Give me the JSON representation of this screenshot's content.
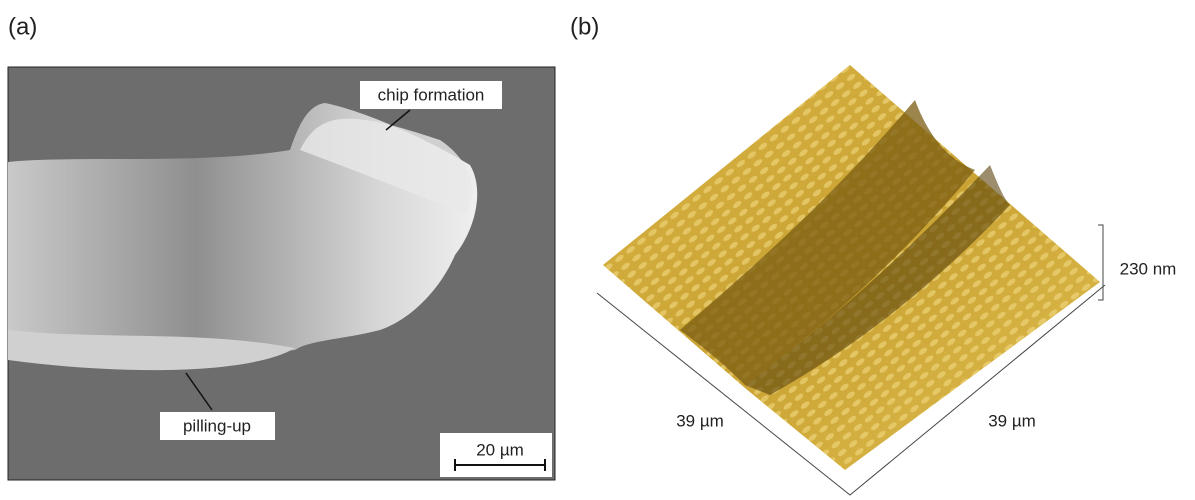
{
  "panels": [
    {
      "label": "(a)",
      "annotations": [
        "chip formation",
        "pilling-up"
      ],
      "scale_bar": "20 µm"
    },
    {
      "label": "(b)",
      "x_extent": "39 µm",
      "y_extent": "39 µm",
      "z_extent": "230 nm"
    }
  ]
}
